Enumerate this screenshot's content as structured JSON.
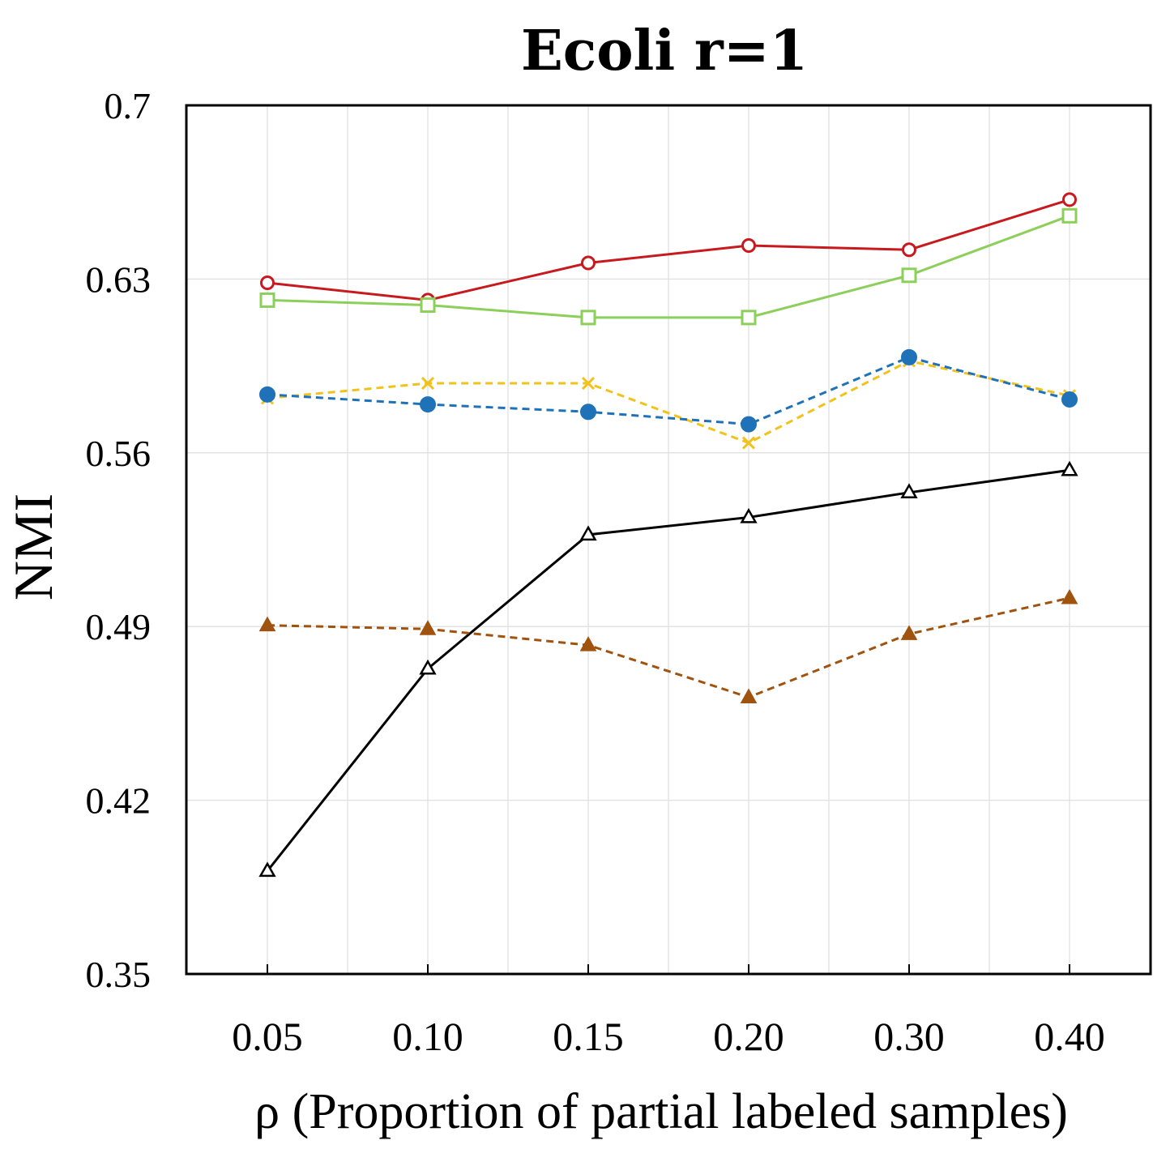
{
  "chart_data": {
    "type": "line",
    "title": "Ecoli r=1",
    "xlabel": "ρ (Proportion of partial labeled samples)",
    "ylabel": "NMI",
    "categories": [
      "0.05",
      "0.10",
      "0.15",
      "0.20",
      "0.30",
      "0.40"
    ],
    "ylim": [
      0.35,
      0.7
    ],
    "yticks": [
      "0.35",
      "0.42",
      "0.49",
      "0.56",
      "0.63",
      "0.7"
    ],
    "grid": true,
    "legend": "none",
    "series": [
      {
        "name": "red-circle",
        "color": "#c8191e",
        "dashed": false,
        "marker": "circle-open",
        "values": [
          0.6285,
          0.6215,
          0.6365,
          0.6435,
          0.6418,
          0.662
        ]
      },
      {
        "name": "green-square",
        "color": "#8ccf5a",
        "dashed": false,
        "marker": "square-open",
        "values": [
          0.6215,
          0.6195,
          0.6145,
          0.6145,
          0.6315,
          0.6555
        ]
      },
      {
        "name": "yellow-x",
        "color": "#f2c21c",
        "dashed": true,
        "marker": "x",
        "values": [
          0.582,
          0.588,
          0.588,
          0.564,
          0.597,
          0.583
        ]
      },
      {
        "name": "blue-dot",
        "color": "#1f72b8",
        "dashed": true,
        "marker": "circle-filled",
        "values": [
          0.5835,
          0.5795,
          0.5765,
          0.5715,
          0.5985,
          0.5815
        ]
      },
      {
        "name": "black-triangle",
        "color": "#000000",
        "dashed": false,
        "marker": "triangle-open",
        "values": [
          0.3915,
          0.473,
          0.527,
          0.534,
          0.544,
          0.553
        ]
      },
      {
        "name": "brown-triangle",
        "color": "#a0520f",
        "dashed": true,
        "marker": "triangle-filled",
        "values": [
          0.4905,
          0.489,
          0.4825,
          0.4615,
          0.487,
          0.5015
        ]
      }
    ]
  }
}
